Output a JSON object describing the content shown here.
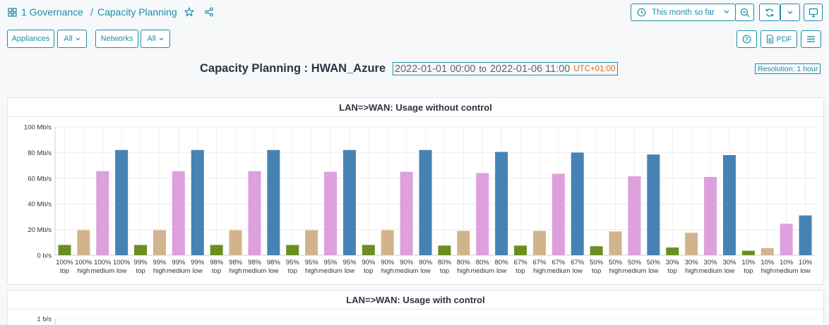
{
  "breadcrumb": {
    "root": "1 Governance",
    "sep": "/",
    "current": "Capacity Planning"
  },
  "time_selector": {
    "label": "This month so far"
  },
  "filters": {
    "appliances_label": "Appliances",
    "appliances_value": "All",
    "networks_label": "Networks",
    "networks_value": "All"
  },
  "toolbar": {
    "pdf_label": "PDF"
  },
  "report": {
    "title": "Capacity Planning : HWAN_Azure",
    "start": "2022-01-01 00:00",
    "to": "to",
    "end": "2022-01-06 11:00",
    "timezone": "UTC+01:00",
    "resolution": "Resolution: 1 hour"
  },
  "panels": [
    {
      "title": "LAN=>WAN: Usage without control"
    },
    {
      "title": "LAN=>WAN: Usage with control"
    }
  ],
  "colors": {
    "top": "#6b8e23",
    "high": "#d2b48c",
    "medium": "#dda0dd",
    "low": "#4682b4",
    "accent": "#1b8fa6"
  },
  "chart_data": [
    {
      "type": "bar",
      "title": "LAN=>WAN: Usage without control",
      "unit": "Mb/s",
      "ylim": [
        0,
        100
      ],
      "yticks": [
        "0 b/s",
        "20 Mb/s",
        "40 Mb/s",
        "60 Mb/s",
        "80 Mb/s",
        "100 Mb/s"
      ],
      "grid": true,
      "categories": [
        [
          "100%",
          "top"
        ],
        [
          "100%",
          "high"
        ],
        [
          "100%",
          "medium"
        ],
        [
          "100%",
          "low"
        ],
        [
          "99%",
          "top"
        ],
        [
          "99%",
          "high"
        ],
        [
          "99%",
          "medium"
        ],
        [
          "99%",
          "low"
        ],
        [
          "98%",
          "top"
        ],
        [
          "98%",
          "high"
        ],
        [
          "98%",
          "medium"
        ],
        [
          "98%",
          "low"
        ],
        [
          "95%",
          "top"
        ],
        [
          "95%",
          "high"
        ],
        [
          "95%",
          "medium"
        ],
        [
          "95%",
          "low"
        ],
        [
          "90%",
          "top"
        ],
        [
          "90%",
          "high"
        ],
        [
          "90%",
          "medium"
        ],
        [
          "90%",
          "low"
        ],
        [
          "80%",
          "top"
        ],
        [
          "80%",
          "high"
        ],
        [
          "80%",
          "medium"
        ],
        [
          "80%",
          "low"
        ],
        [
          "67%",
          "top"
        ],
        [
          "67%",
          "high"
        ],
        [
          "67%",
          "medium"
        ],
        [
          "67%",
          "low"
        ],
        [
          "50%",
          "top"
        ],
        [
          "50%",
          "high"
        ],
        [
          "50%",
          "medium"
        ],
        [
          "50%",
          "low"
        ],
        [
          "30%",
          "top"
        ],
        [
          "30%",
          "high"
        ],
        [
          "30%",
          "medium"
        ],
        [
          "30%",
          "low"
        ],
        [
          "10%",
          "top"
        ],
        [
          "10%",
          "high"
        ],
        [
          "10%",
          "medium"
        ],
        [
          "10%",
          "low"
        ]
      ],
      "values": [
        8,
        19.5,
        65.5,
        82,
        8,
        19.5,
        65.5,
        82,
        8,
        19.5,
        65.5,
        82,
        8,
        19.5,
        65,
        82,
        8,
        19.5,
        65,
        82,
        7.5,
        19,
        64,
        80.5,
        7.5,
        19,
        63.5,
        80,
        7,
        18.5,
        61.5,
        78.5,
        6,
        17.5,
        61,
        78,
        3.5,
        5.5,
        24.5,
        31
      ]
    },
    {
      "type": "bar",
      "title": "LAN=>WAN: Usage with control",
      "yticks": [
        "1 b/s"
      ],
      "values": []
    }
  ]
}
